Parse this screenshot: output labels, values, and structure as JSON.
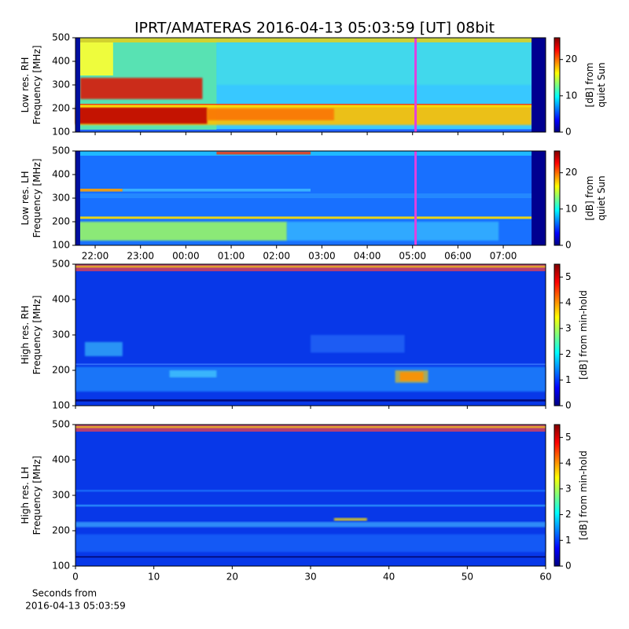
{
  "title": "IPRT/AMATERAS 2016-04-13 05:03:59 [UT]   08bit",
  "chart_data": [
    {
      "type": "heatmap",
      "ylabel": [
        "Low res. RH",
        "Frequency [MHz]"
      ],
      "ylim": [
        100,
        500
      ],
      "yticks": [
        100,
        200,
        300,
        400,
        500
      ],
      "xlim": [
        21.566,
        31.935
      ],
      "marker": {
        "x": 29.0664,
        "color": "#e040e0"
      },
      "colorbar": {
        "label": [
          "[dB] from",
          "quiet Sun"
        ],
        "lim": [
          0,
          26
        ],
        "ticks": [
          0,
          10,
          20
        ]
      }
    },
    {
      "type": "heatmap",
      "ylabel": [
        "Low res. LH",
        "Frequency [MHz]"
      ],
      "ylim": [
        100,
        500
      ],
      "yticks": [
        100,
        200,
        300,
        400,
        500
      ],
      "xlim": [
        21.566,
        31.935
      ],
      "xticks": [
        {
          "value": 22,
          "label": "22:00"
        },
        {
          "value": 23,
          "label": "23:00"
        },
        {
          "value": 24,
          "label": "00:00"
        },
        {
          "value": 25,
          "label": "01:00"
        },
        {
          "value": 26,
          "label": "02:00"
        },
        {
          "value": 27,
          "label": "03:00"
        },
        {
          "value": 28,
          "label": "04:00"
        },
        {
          "value": 29,
          "label": "05:00"
        },
        {
          "value": 30,
          "label": "06:00"
        },
        {
          "value": 31,
          "label": "07:00"
        }
      ],
      "marker": {
        "x": 29.0664,
        "color": "#e040e0"
      },
      "colorbar": {
        "label": [
          "[dB] from",
          "quiet Sun"
        ],
        "lim": [
          0,
          26
        ],
        "ticks": [
          0,
          10,
          20
        ]
      }
    },
    {
      "type": "heatmap",
      "ylabel": [
        "High res. RH",
        "Frequency [MHz]"
      ],
      "ylim": [
        100,
        500
      ],
      "yticks": [
        100,
        200,
        300,
        400,
        500
      ],
      "xlim": [
        0,
        60
      ],
      "colorbar": {
        "label": [
          "[dB] from min-hold"
        ],
        "lim": [
          0,
          5.5
        ],
        "ticks": [
          0,
          1,
          2,
          3,
          4,
          5
        ]
      }
    },
    {
      "type": "heatmap",
      "ylabel": [
        "High res. LH",
        "Frequency [MHz]"
      ],
      "ylim": [
        100,
        500
      ],
      "yticks": [
        100,
        200,
        300,
        400,
        500
      ],
      "xlim": [
        0,
        60
      ],
      "xticks": [
        0,
        10,
        20,
        30,
        40,
        50,
        60
      ],
      "xlabel": [
        "Seconds from",
        "2016-04-13 05:03:59"
      ],
      "colorbar": {
        "label": [
          "[dB] from min-hold"
        ],
        "lim": [
          0,
          5.5
        ],
        "ticks": [
          0,
          1,
          2,
          3,
          4,
          5
        ]
      }
    }
  ]
}
